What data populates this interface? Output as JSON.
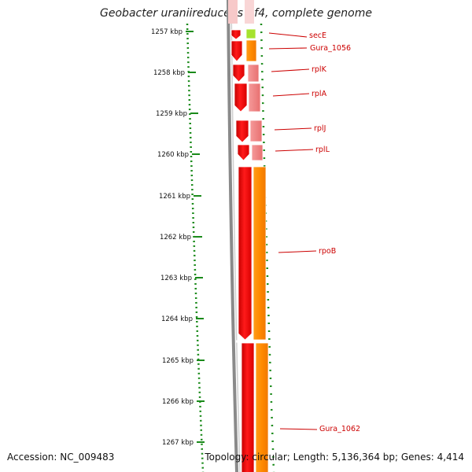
{
  "title": "Geobacter uraniireducens Rf4, complete genome",
  "footer": {
    "accession": "Accession: NC_009483",
    "summary": "Topology: circular; Length: 5,136,364 bp; Genes: 4,414"
  },
  "axis": {
    "unit": "kbp",
    "ticks": [
      "1257 kbp",
      "1258 kbp",
      "1259 kbp",
      "1260 kbp",
      "1261 kbp",
      "1262 kbp",
      "1263 kbp",
      "1264 kbp",
      "1265 kbp",
      "1266 kbp",
      "1267 kbp"
    ]
  },
  "genes": [
    {
      "label": "secE",
      "color": "#cc0000"
    },
    {
      "label": "Gura_1056",
      "color": "#cc0000"
    },
    {
      "label": "rplK",
      "color": "#cc0000"
    },
    {
      "label": "rplA",
      "color": "#cc0000"
    },
    {
      "label": "rplJ",
      "color": "#cc0000"
    },
    {
      "label": "rplL",
      "color": "#cc0000"
    },
    {
      "label": "rpoB",
      "color": "#cc0000"
    },
    {
      "label": "Gura_1062",
      "color": "#cc0000"
    }
  ],
  "colors": {
    "cds": "#ee0000",
    "cds_dark": "#b00000",
    "rna_pink": "#f08080",
    "orange": "#ff8c00",
    "lime": "#a6e22e",
    "backbone": "#808080",
    "tick_green": "#1a8a1a"
  }
}
